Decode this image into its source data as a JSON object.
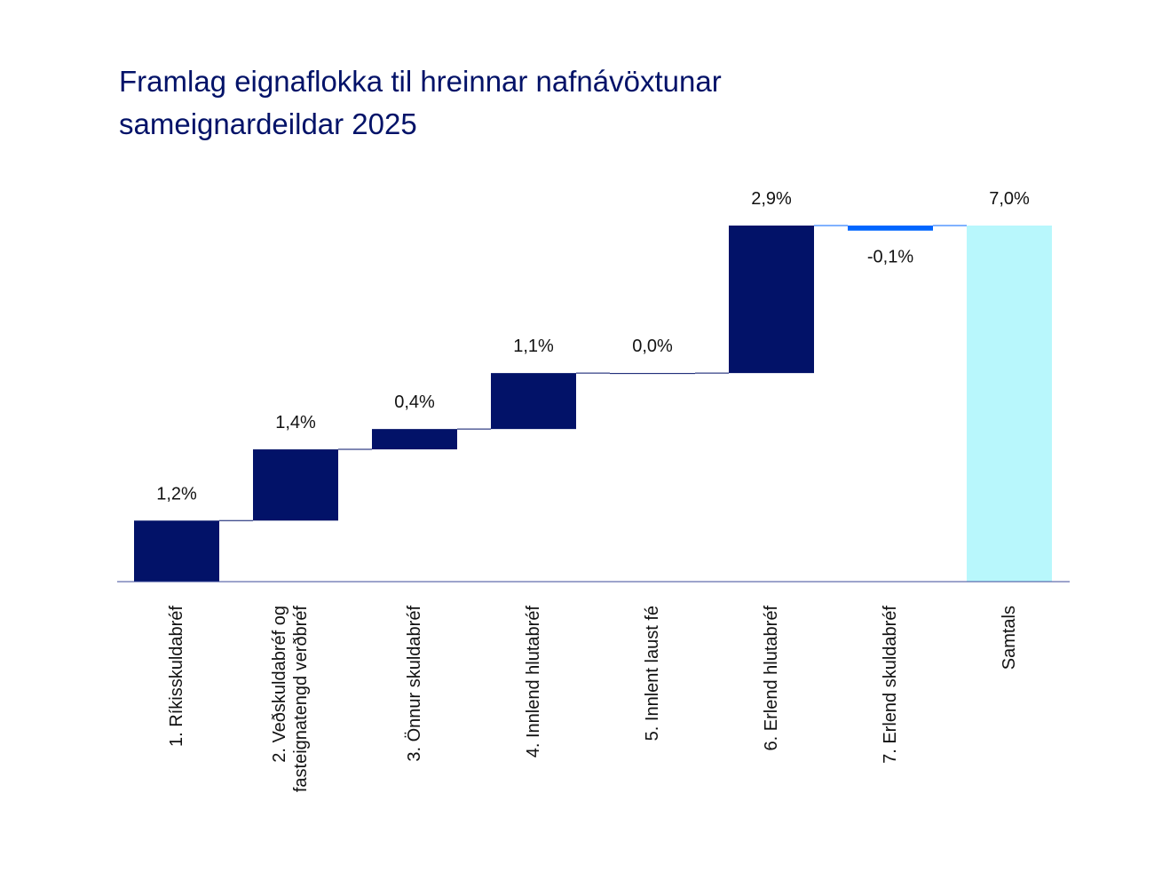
{
  "chart_data": {
    "type": "waterfall",
    "title": "Framlag eignaflokka til hreinnar nafnávöxtunar sameignardeildar 2025",
    "categories": [
      "1. Ríkisskuldabréf",
      "2. Veðskuldabréf og\nfasteignatengd verðbréf",
      "3. Önnur skuldabréf",
      "4. Innlend hlutabréf",
      "5. Innlent laust fé",
      "6. Erlend hlutabréf",
      "7. Erlend skuldabréf",
      "Samtals"
    ],
    "values": [
      1.2,
      1.4,
      0.4,
      1.1,
      0.0,
      2.9,
      -0.1,
      7.0
    ],
    "data_labels": [
      "1,2%",
      "1,4%",
      "0,4%",
      "1,1%",
      "0,0%",
      "2,9%",
      "-0,1%",
      "7,0%"
    ],
    "total_index": 7,
    "ylim": [
      0,
      7.1
    ],
    "grid": false,
    "colors": {
      "positive": "#021268",
      "negative": "#0066ff",
      "total": "#b8f7fc",
      "connector": "#021268",
      "axis": "#3b4a9a"
    }
  }
}
